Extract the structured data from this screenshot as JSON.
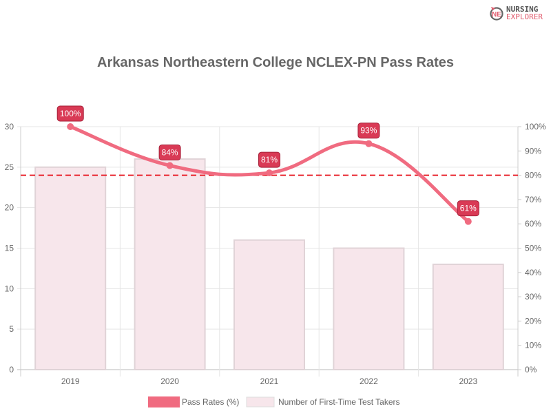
{
  "logo": {
    "line1": "NURSING",
    "line2": "EXPLORER"
  },
  "chart_data": {
    "type": "bar",
    "title": "Arkansas Northeastern College NCLEX-PN Pass Rates",
    "categories": [
      "2019",
      "2020",
      "2021",
      "2022",
      "2023"
    ],
    "series": [
      {
        "name": "Pass Rates (%)",
        "type": "line",
        "axis": "right",
        "values": [
          100,
          84,
          81,
          93,
          61
        ],
        "labels": [
          "100%",
          "84%",
          "81%",
          "93%",
          "61%"
        ],
        "color": "#f06b80"
      },
      {
        "name": "Number of First-Time Test Takers",
        "type": "bar",
        "axis": "left",
        "values": [
          25,
          26,
          16,
          15,
          13
        ],
        "color": "#f7e6eb"
      }
    ],
    "left_axis": {
      "ylim": [
        0,
        30
      ],
      "ticks": [
        "0",
        "5",
        "10",
        "15",
        "20",
        "25",
        "30"
      ]
    },
    "right_axis": {
      "ylim": [
        0,
        100
      ],
      "ticks": [
        "0%",
        "10%",
        "20%",
        "30%",
        "40%",
        "50%",
        "60%",
        "70%",
        "80%",
        "90%",
        "100%"
      ]
    },
    "reference_line": {
      "value": 80,
      "axis": "right",
      "style": "dashed",
      "color": "#e8202a"
    },
    "grid": true,
    "legend": "bottom"
  }
}
